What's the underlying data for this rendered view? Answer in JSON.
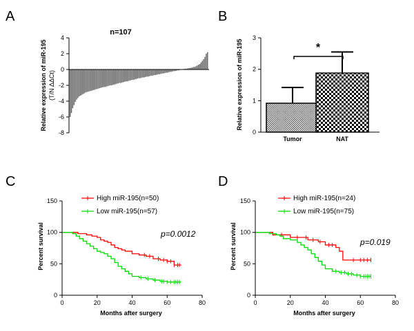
{
  "chart_data": [
    {
      "id": "A",
      "type": "bar",
      "panel_label": "A",
      "title": "n=107",
      "ylabel_line1": "Relative expression of miR-195",
      "ylabel_line2": "(T/N ΔΔCt)",
      "ylim": [
        -8,
        4
      ],
      "yticks": [
        "4",
        "2",
        "0",
        "-2",
        "-4",
        "-6",
        "-8"
      ],
      "n": 107,
      "values": [
        -6.0,
        -5.5,
        -4.9,
        -4.5,
        -4.1,
        -3.8,
        -3.6,
        -3.4,
        -3.3,
        -3.2,
        -3.1,
        -3.0,
        -2.9,
        -2.85,
        -2.8,
        -2.75,
        -2.7,
        -2.65,
        -2.6,
        -2.55,
        -2.5,
        -2.45,
        -2.4,
        -2.35,
        -2.3,
        -2.25,
        -2.2,
        -2.2,
        -2.15,
        -2.1,
        -2.05,
        -2.0,
        -2.0,
        -1.95,
        -1.9,
        -1.85,
        -1.8,
        -1.75,
        -1.7,
        -1.7,
        -1.65,
        -1.6,
        -1.55,
        -1.5,
        -1.5,
        -1.45,
        -1.4,
        -1.35,
        -1.3,
        -1.3,
        -1.25,
        -1.2,
        -1.15,
        -1.1,
        -1.1,
        -1.05,
        -1.0,
        -1.0,
        -0.95,
        -0.9,
        -0.9,
        -0.85,
        -0.8,
        -0.8,
        -0.75,
        -0.7,
        -0.7,
        -0.65,
        -0.6,
        -0.6,
        -0.55,
        -0.5,
        -0.5,
        -0.45,
        -0.4,
        -0.4,
        -0.35,
        -0.3,
        -0.3,
        -0.25,
        -0.2,
        -0.2,
        -0.15,
        -0.1,
        -0.1,
        -0.05,
        0.0,
        0.05,
        0.08,
        0.1,
        0.12,
        0.15,
        0.18,
        0.2,
        0.25,
        0.3,
        0.35,
        0.4,
        0.5,
        0.6,
        0.7,
        0.9,
        1.1,
        1.3,
        1.6,
        2.0,
        2.2
      ],
      "bar_color": "#555555"
    },
    {
      "id": "B",
      "type": "bar",
      "panel_label": "B",
      "ylabel": "Relative expression of miR-195",
      "ylim": [
        0,
        3
      ],
      "yticks": [
        "0",
        "1",
        "2",
        "3"
      ],
      "categories": [
        "Tumor",
        "NAT"
      ],
      "values": [
        0.92,
        1.88
      ],
      "errors": [
        0.5,
        0.67
      ],
      "significance": "*"
    },
    {
      "id": "C",
      "type": "line",
      "panel_label": "C",
      "xlabel": "Months after surgery",
      "ylabel": "Percent survival",
      "xlim": [
        0,
        80
      ],
      "ylim": [
        0,
        150
      ],
      "xticks": [
        "0",
        "20",
        "40",
        "60",
        "80"
      ],
      "yticks": [
        "150",
        "100",
        "50",
        "0"
      ],
      "p_value": "p=0.0012",
      "series": [
        {
          "name": "High miR-195(n=50)",
          "color": "#ff0000",
          "steps": [
            [
              0,
              100
            ],
            [
              9,
              98
            ],
            [
              14,
              96
            ],
            [
              17,
              94
            ],
            [
              20,
              92
            ],
            [
              22,
              88
            ],
            [
              24,
              86
            ],
            [
              26,
              84
            ],
            [
              28,
              80
            ],
            [
              30,
              76
            ],
            [
              32,
              74
            ],
            [
              34,
              72
            ],
            [
              36,
              70
            ],
            [
              40,
              66
            ],
            [
              44,
              64
            ],
            [
              48,
              62
            ],
            [
              52,
              58
            ],
            [
              56,
              56
            ],
            [
              60,
              54
            ],
            [
              64,
              48
            ],
            [
              68,
              48
            ]
          ],
          "censor": [
            47,
            50,
            55,
            58,
            60,
            62,
            64,
            66,
            67
          ]
        },
        {
          "name": "Low miR-195(n=57)",
          "color": "#00dd00",
          "steps": [
            [
              0,
              100
            ],
            [
              6,
              98
            ],
            [
              8,
              94
            ],
            [
              10,
              90
            ],
            [
              12,
              86
            ],
            [
              14,
              82
            ],
            [
              16,
              78
            ],
            [
              18,
              74
            ],
            [
              20,
              70
            ],
            [
              22,
              68
            ],
            [
              24,
              66
            ],
            [
              26,
              62
            ],
            [
              28,
              58
            ],
            [
              30,
              52
            ],
            [
              32,
              46
            ],
            [
              34,
              42
            ],
            [
              36,
              38
            ],
            [
              38,
              34
            ],
            [
              40,
              30
            ],
            [
              44,
              28
            ],
            [
              48,
              26
            ],
            [
              52,
              24
            ],
            [
              56,
              22
            ],
            [
              60,
              21
            ],
            [
              68,
              21
            ]
          ],
          "censor": [
            45,
            49,
            53,
            57,
            58,
            60,
            62,
            64,
            65,
            66,
            67
          ]
        }
      ]
    },
    {
      "id": "D",
      "type": "line",
      "panel_label": "D",
      "xlabel": "Months after surgery",
      "ylabel": "Percent survival",
      "xlim": [
        0,
        80
      ],
      "ylim": [
        0,
        150
      ],
      "xticks": [
        "0",
        "20",
        "40",
        "60",
        "80"
      ],
      "yticks": [
        "150",
        "100",
        "50",
        "0"
      ],
      "p_value": "p=0.019",
      "series": [
        {
          "name": "High miR-195(n=24)",
          "color": "#ff0000",
          "steps": [
            [
              0,
              100
            ],
            [
              10,
              96
            ],
            [
              20,
              92
            ],
            [
              30,
              88
            ],
            [
              36,
              85
            ],
            [
              40,
              80
            ],
            [
              46,
              76
            ],
            [
              48,
              70
            ],
            [
              50,
              56
            ],
            [
              66,
              56
            ]
          ],
          "censor": [
            15,
            24,
            29,
            33,
            37,
            42,
            44,
            56,
            60,
            62,
            64,
            66
          ]
        },
        {
          "name": "Low miR-195(n=75)",
          "color": "#00dd00",
          "steps": [
            [
              0,
              100
            ],
            [
              8,
              98
            ],
            [
              12,
              96
            ],
            [
              14,
              94
            ],
            [
              16,
              90
            ],
            [
              20,
              88
            ],
            [
              24,
              84
            ],
            [
              26,
              80
            ],
            [
              28,
              76
            ],
            [
              30,
              72
            ],
            [
              32,
              66
            ],
            [
              34,
              60
            ],
            [
              36,
              54
            ],
            [
              38,
              48
            ],
            [
              40,
              42
            ],
            [
              44,
              38
            ],
            [
              48,
              36
            ],
            [
              52,
              34
            ],
            [
              56,
              32
            ],
            [
              60,
              30
            ],
            [
              66,
              30
            ]
          ],
          "censor": [
            46,
            49,
            51,
            53,
            55,
            58,
            60,
            62,
            63,
            64,
            65,
            66
          ]
        }
      ]
    }
  ]
}
